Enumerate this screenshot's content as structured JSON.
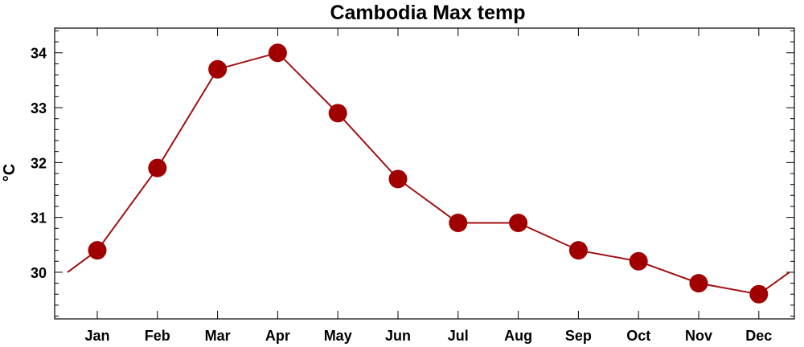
{
  "chart_data": {
    "type": "line",
    "title": "Cambodia Max temp",
    "xlabel": "",
    "ylabel": "°C",
    "categories": [
      "Jan",
      "Feb",
      "Mar",
      "Apr",
      "May",
      "Jun",
      "Jul",
      "Aug",
      "Sep",
      "Oct",
      "Nov",
      "Dec"
    ],
    "series": [
      {
        "values": [
          30.4,
          31.9,
          33.7,
          34.0,
          32.9,
          31.7,
          30.9,
          30.9,
          30.4,
          30.2,
          29.8,
          29.6
        ]
      }
    ],
    "edge_values": {
      "left": 30.0,
      "right": 30.0
    },
    "yticks": [
      30,
      31,
      32,
      33,
      34
    ],
    "ylim": [
      29.15,
      34.45
    ],
    "grid": false,
    "colors": {
      "line": "#a01010",
      "marker": "#a00000",
      "axis": "#000000"
    }
  }
}
